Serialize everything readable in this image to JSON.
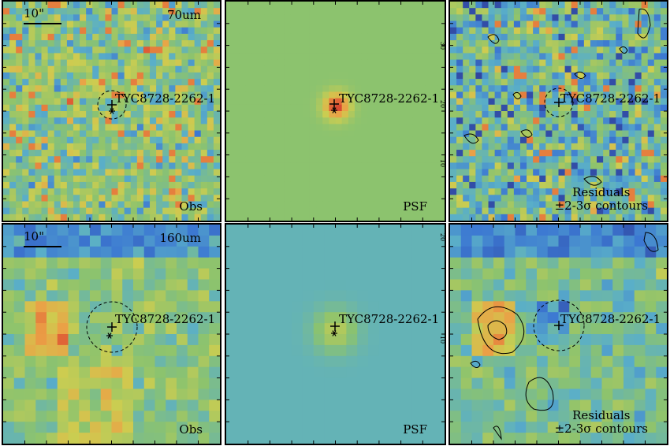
{
  "target_name": "TYC8728-2262-1",
  "scale_bar_label": "10\"",
  "rows": [
    {
      "band": "70um",
      "obs_label": "Obs",
      "psf_label": "PSF",
      "res_label1": "Residuals",
      "res_label2": "±2-3σ contours"
    },
    {
      "band": "160um",
      "obs_label": "Obs",
      "psf_label": "PSF",
      "res_label1": "Residuals",
      "res_label2": "±2-3σ contours"
    }
  ],
  "psf_axis_ticks": {
    "top_row": [
      "30",
      "20",
      "10"
    ],
    "bottom_row": [
      "20",
      "10"
    ]
  },
  "colors": {
    "frame": "#000000",
    "psf_bg_70": "#8cc36a",
    "psf_bg_160": "#66b3a3"
  }
}
